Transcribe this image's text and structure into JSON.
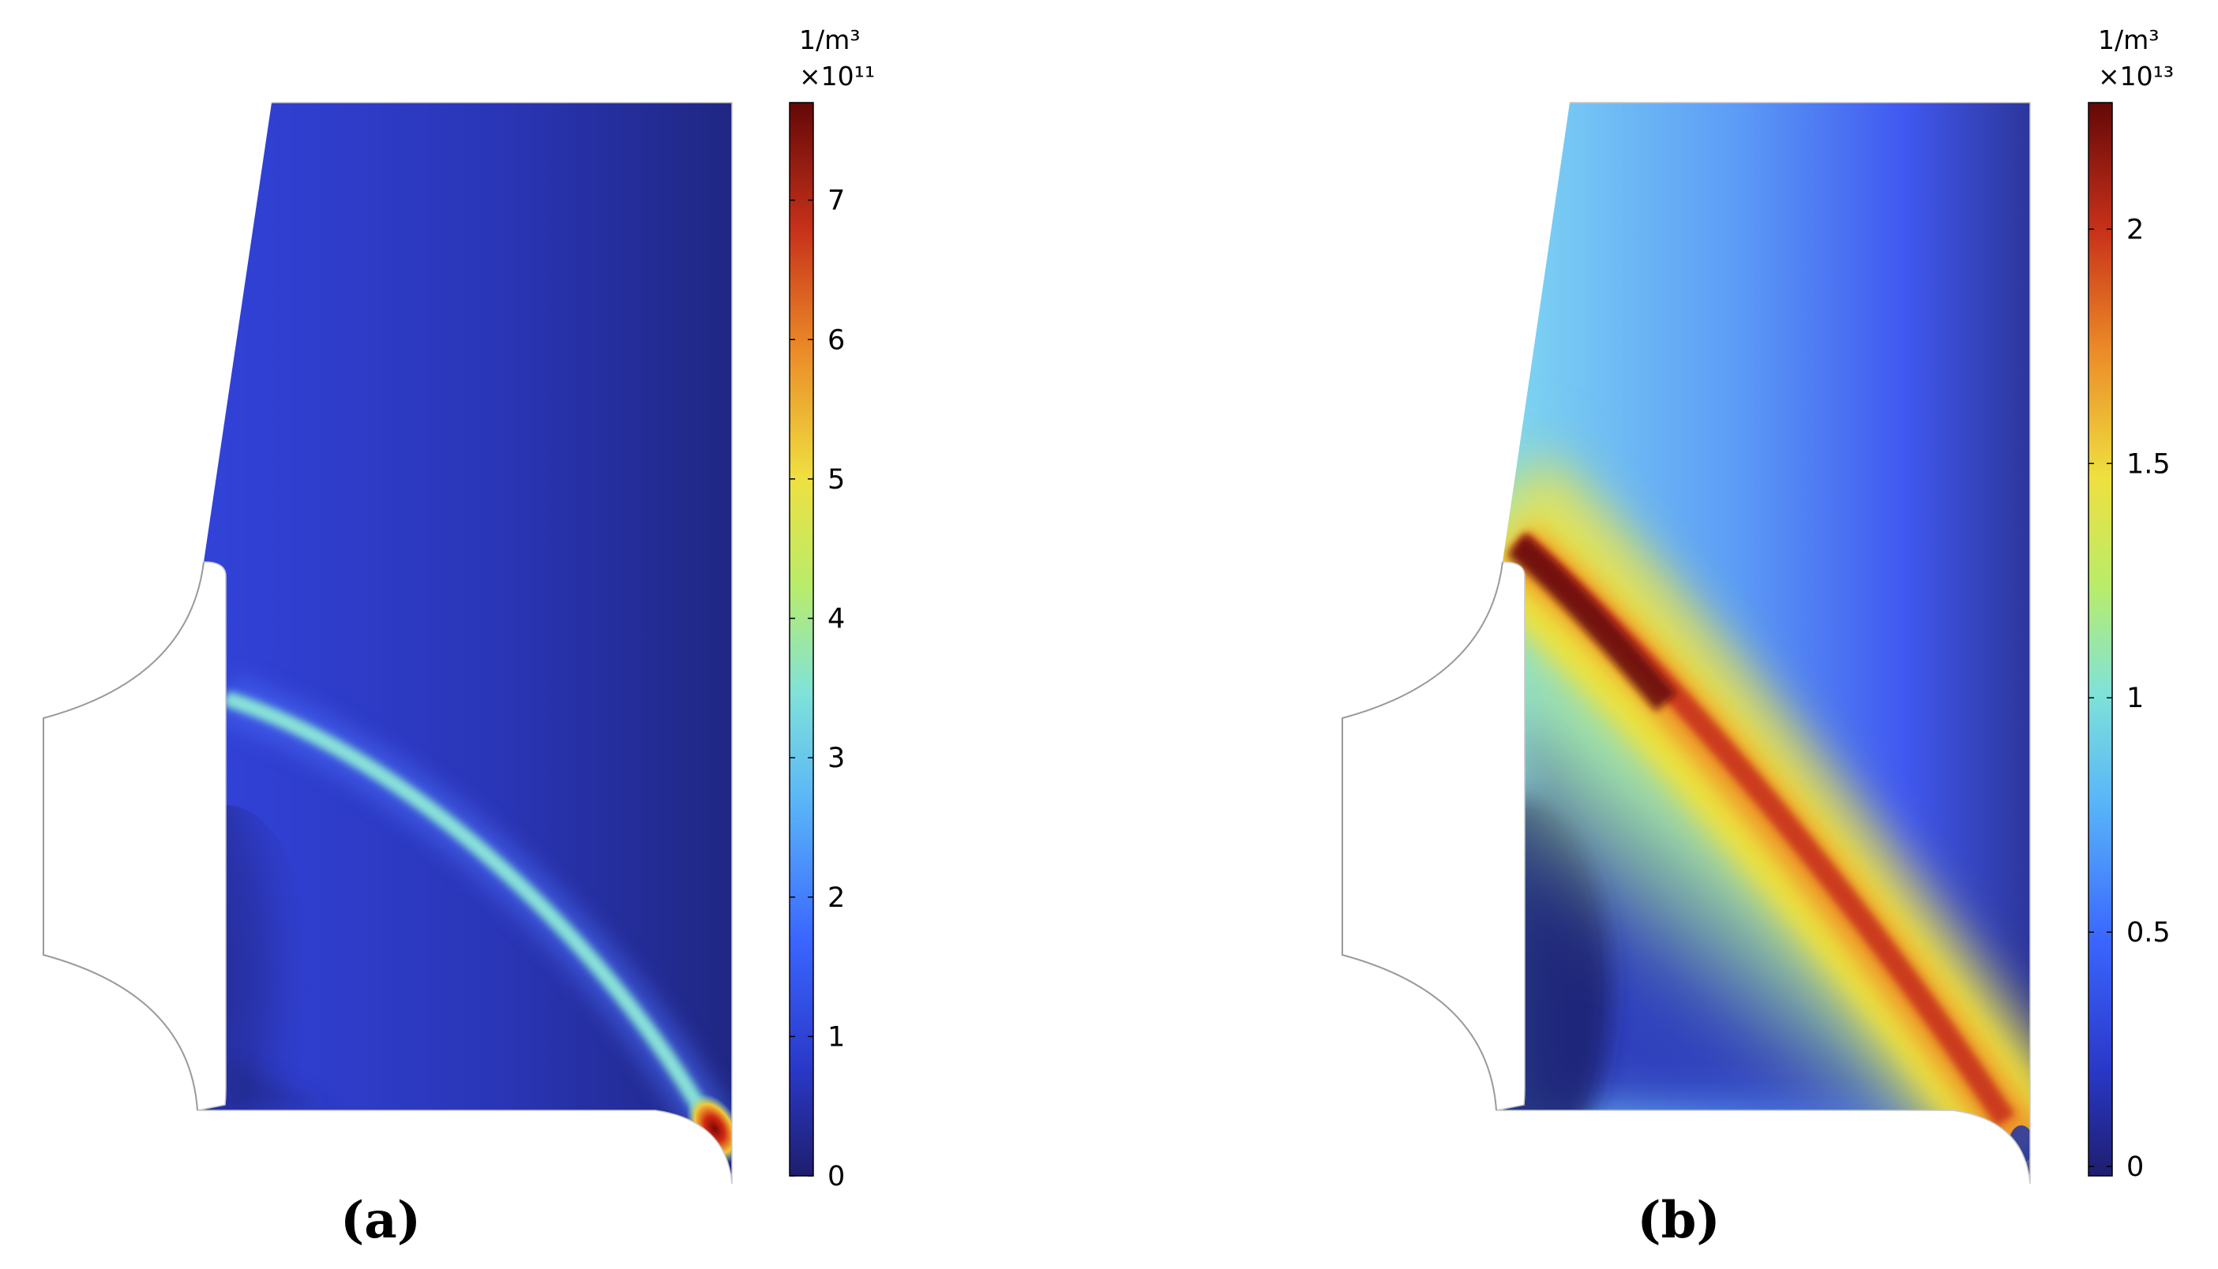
{
  "chart_data": [
    {
      "type": "heatmap",
      "panel_label": "(a)",
      "unit_label": "1/m³",
      "multiplier_label": "×10¹¹",
      "colorbar": {
        "colormap": "rainbow",
        "range": [
          0,
          7.7
        ],
        "ticks": [
          0,
          1,
          2,
          3,
          4,
          5,
          6,
          7
        ],
        "tick_labels": [
          "0",
          "1",
          "2",
          "3",
          "4",
          "5",
          "6",
          "7"
        ]
      }
    },
    {
      "type": "heatmap",
      "panel_label": "(b)",
      "unit_label": "1/m³",
      "multiplier_label": "×10¹³",
      "colorbar": {
        "colormap": "rainbow",
        "range": [
          -0.02,
          2.27
        ],
        "ticks": [
          0,
          0.5,
          1,
          1.5,
          2
        ],
        "tick_labels": [
          "0",
          "0.5",
          "1",
          "1.5",
          "2"
        ]
      }
    }
  ]
}
